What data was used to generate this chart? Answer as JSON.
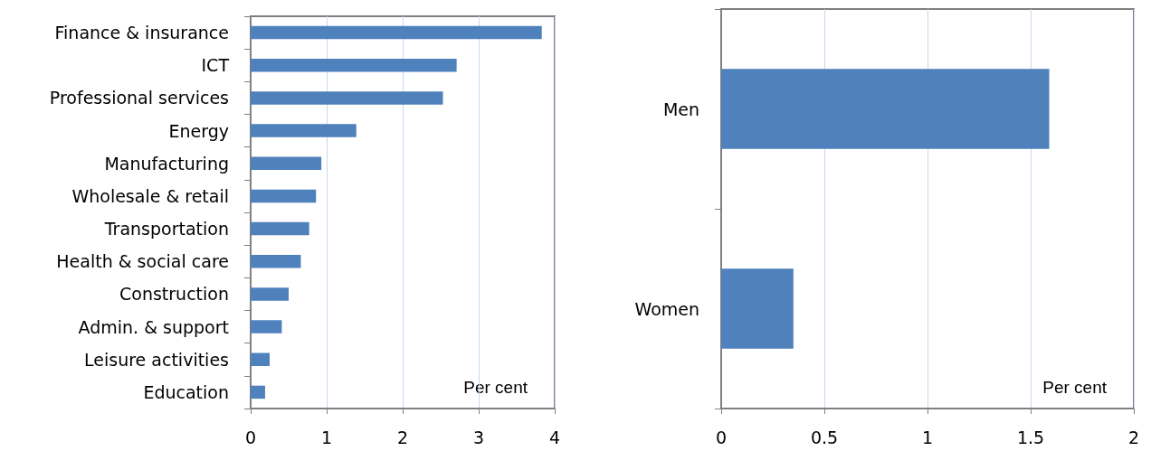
{
  "chart_data": [
    {
      "type": "bar",
      "orientation": "horizontal",
      "categories": [
        "Finance & insurance",
        "ICT",
        "Professional services",
        "Energy",
        "Manufacturing",
        "Wholesale & retail",
        "Transportation",
        "Health & social care",
        "Construction",
        "Admin. & support",
        "Leisure activities",
        "Education"
      ],
      "series": [
        {
          "color": "#4f81bd",
          "values": [
            3.83,
            2.71,
            2.53,
            1.39,
            0.93,
            0.86,
            0.77,
            0.66,
            0.5,
            0.41,
            0.25,
            0.19
          ]
        }
      ],
      "xlim": [
        0,
        4
      ],
      "xticks": [
        0,
        1,
        2,
        3,
        4
      ],
      "grid": "x",
      "annotations": [
        "Per cent"
      ]
    },
    {
      "type": "bar",
      "orientation": "horizontal",
      "categories": [
        "Men",
        "Women"
      ],
      "series": [
        {
          "color": "#4f81bd",
          "values": [
            1.59,
            0.35
          ]
        }
      ],
      "xlim": [
        0,
        2
      ],
      "xticks": [
        0,
        0.5,
        1,
        1.5,
        2
      ],
      "grid": "x",
      "annotations": [
        "Per cent"
      ]
    }
  ]
}
